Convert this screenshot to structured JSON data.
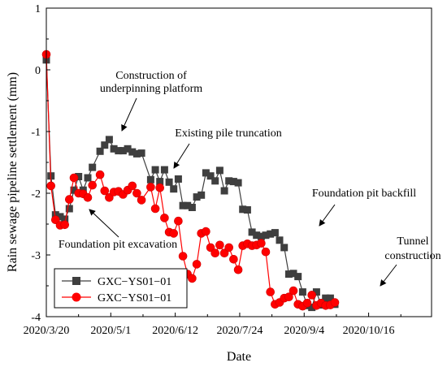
{
  "chart_data": {
    "type": "line",
    "title": "",
    "xlabel": "Date",
    "ylabel": "Rain sewage pipeline settlement  (mm)",
    "x_ticks": [
      "2020/3/20",
      "2020/5/1",
      "2020/6/12",
      "2020/7/24",
      "2020/9/4",
      "2020/10/16"
    ],
    "y_ticks": [
      "1",
      "0",
      "-1",
      "-2",
      "-3",
      "-4"
    ],
    "xlim": [
      "2020-03-20",
      "2020-11-26"
    ],
    "ylim": [
      -4,
      1
    ],
    "legend_position": "bottom-left",
    "series": [
      {
        "name": "GXC−YS01−01",
        "color": "#3f3f3f",
        "marker": "square",
        "points": [
          [
            "2020-03-20",
            0.16
          ],
          [
            "2020-03-23",
            -1.72
          ],
          [
            "2020-03-26",
            -2.35
          ],
          [
            "2020-03-29",
            -2.38
          ],
          [
            "2020-04-01",
            -2.42
          ],
          [
            "2020-04-04",
            -2.25
          ],
          [
            "2020-04-07",
            -1.95
          ],
          [
            "2020-04-10",
            -1.73
          ],
          [
            "2020-04-13",
            -1.95
          ],
          [
            "2020-04-16",
            -1.75
          ],
          [
            "2020-04-19",
            -1.58
          ],
          [
            "2020-04-24",
            -1.32
          ],
          [
            "2020-04-27",
            -1.22
          ],
          [
            "2020-04-30",
            -1.13
          ],
          [
            "2020-05-03",
            -1.28
          ],
          [
            "2020-05-06",
            -1.31
          ],
          [
            "2020-05-09",
            -1.31
          ],
          [
            "2020-05-12",
            -1.28
          ],
          [
            "2020-05-15",
            -1.33
          ],
          [
            "2020-05-18",
            -1.36
          ],
          [
            "2020-05-21",
            -1.35
          ],
          [
            "2020-05-27",
            -1.78
          ],
          [
            "2020-05-30",
            -1.62
          ],
          [
            "2020-06-02",
            -1.81
          ],
          [
            "2020-06-05",
            -1.62
          ],
          [
            "2020-06-08",
            -1.82
          ],
          [
            "2020-06-11",
            -1.93
          ],
          [
            "2020-06-14",
            -1.77
          ],
          [
            "2020-06-17",
            -2.2
          ],
          [
            "2020-06-20",
            -2.2
          ],
          [
            "2020-06-23",
            -2.23
          ],
          [
            "2020-06-26",
            -2.06
          ],
          [
            "2020-06-29",
            -2.03
          ],
          [
            "2020-07-02",
            -1.67
          ],
          [
            "2020-07-05",
            -1.72
          ],
          [
            "2020-07-08",
            -1.8
          ],
          [
            "2020-07-11",
            -1.63
          ],
          [
            "2020-07-14",
            -1.96
          ],
          [
            "2020-07-17",
            -1.8
          ],
          [
            "2020-07-20",
            -1.81
          ],
          [
            "2020-07-23",
            -1.83
          ],
          [
            "2020-07-26",
            -2.26
          ],
          [
            "2020-07-29",
            -2.27
          ],
          [
            "2020-08-01",
            -2.63
          ],
          [
            "2020-08-04",
            -2.68
          ],
          [
            "2020-08-07",
            -2.7
          ],
          [
            "2020-08-10",
            -2.68
          ],
          [
            "2020-08-13",
            -2.66
          ],
          [
            "2020-08-16",
            -2.64
          ],
          [
            "2020-08-19",
            -2.76
          ],
          [
            "2020-08-22",
            -2.88
          ],
          [
            "2020-08-25",
            -3.31
          ],
          [
            "2020-08-28",
            -3.3
          ],
          [
            "2020-08-31",
            -3.35
          ],
          [
            "2020-09-03",
            -3.6
          ],
          [
            "2020-09-06",
            -3.82
          ],
          [
            "2020-09-09",
            -3.85
          ],
          [
            "2020-09-12",
            -3.6
          ],
          [
            "2020-09-15",
            -3.81
          ],
          [
            "2020-09-18",
            -3.7
          ],
          [
            "2020-09-21",
            -3.7
          ],
          [
            "2020-09-24",
            -3.8
          ]
        ]
      },
      {
        "name": "GXC−YS01−01",
        "color": "#ff0000",
        "marker": "circle",
        "points": [
          [
            "2020-03-20",
            0.25
          ],
          [
            "2020-03-23",
            -1.88
          ],
          [
            "2020-03-26",
            -2.43
          ],
          [
            "2020-03-29",
            -2.52
          ],
          [
            "2020-04-01",
            -2.51
          ],
          [
            "2020-04-04",
            -2.1
          ],
          [
            "2020-04-07",
            -1.75
          ],
          [
            "2020-04-10",
            -2.0
          ],
          [
            "2020-04-13",
            -2.01
          ],
          [
            "2020-04-16",
            -2.07
          ],
          [
            "2020-04-19",
            -1.87
          ],
          [
            "2020-04-24",
            -1.7
          ],
          [
            "2020-04-27",
            -1.96
          ],
          [
            "2020-04-30",
            -2.07
          ],
          [
            "2020-05-03",
            -1.98
          ],
          [
            "2020-05-06",
            -1.97
          ],
          [
            "2020-05-09",
            -2.02
          ],
          [
            "2020-05-12",
            -1.95
          ],
          [
            "2020-05-15",
            -1.88
          ],
          [
            "2020-05-18",
            -2.0
          ],
          [
            "2020-05-21",
            -2.11
          ],
          [
            "2020-05-27",
            -1.9
          ],
          [
            "2020-05-30",
            -2.25
          ],
          [
            "2020-06-02",
            -1.91
          ],
          [
            "2020-06-05",
            -2.4
          ],
          [
            "2020-06-08",
            -2.63
          ],
          [
            "2020-06-11",
            -2.65
          ],
          [
            "2020-06-14",
            -2.45
          ],
          [
            "2020-06-17",
            -3.02
          ],
          [
            "2020-06-20",
            -3.31
          ],
          [
            "2020-06-23",
            -3.38
          ],
          [
            "2020-06-26",
            -3.15
          ],
          [
            "2020-06-29",
            -2.65
          ],
          [
            "2020-07-02",
            -2.62
          ],
          [
            "2020-07-05",
            -2.88
          ],
          [
            "2020-07-08",
            -2.97
          ],
          [
            "2020-07-11",
            -2.84
          ],
          [
            "2020-07-14",
            -2.97
          ],
          [
            "2020-07-17",
            -2.88
          ],
          [
            "2020-07-20",
            -3.07
          ],
          [
            "2020-07-23",
            -3.24
          ],
          [
            "2020-07-26",
            -2.85
          ],
          [
            "2020-07-29",
            -2.82
          ],
          [
            "2020-08-01",
            -2.85
          ],
          [
            "2020-08-04",
            -2.84
          ],
          [
            "2020-08-07",
            -2.81
          ],
          [
            "2020-08-10",
            -2.95
          ],
          [
            "2020-08-13",
            -3.6
          ],
          [
            "2020-08-16",
            -3.8
          ],
          [
            "2020-08-19",
            -3.77
          ],
          [
            "2020-08-22",
            -3.7
          ],
          [
            "2020-08-25",
            -3.68
          ],
          [
            "2020-08-28",
            -3.58
          ],
          [
            "2020-08-31",
            -3.8
          ],
          [
            "2020-09-03",
            -3.83
          ],
          [
            "2020-09-06",
            -3.78
          ],
          [
            "2020-09-09",
            -3.65
          ],
          [
            "2020-09-12",
            -3.82
          ],
          [
            "2020-09-15",
            -3.78
          ],
          [
            "2020-09-18",
            -3.82
          ],
          [
            "2020-09-21",
            -3.81
          ],
          [
            "2020-09-24",
            -3.77
          ]
        ]
      }
    ],
    "annotations": [
      {
        "id": "underpinning",
        "lines": [
          "Construction of",
          "underpinning platform"
        ]
      },
      {
        "id": "truncation",
        "lines": [
          "Existing pile truncation"
        ]
      },
      {
        "id": "excavation",
        "lines": [
          "Foundation pit excavation"
        ]
      },
      {
        "id": "backfill",
        "lines": [
          "Foundation pit backfill"
        ]
      },
      {
        "id": "tunnel",
        "lines": [
          "Tunnel",
          "construction"
        ]
      }
    ]
  }
}
